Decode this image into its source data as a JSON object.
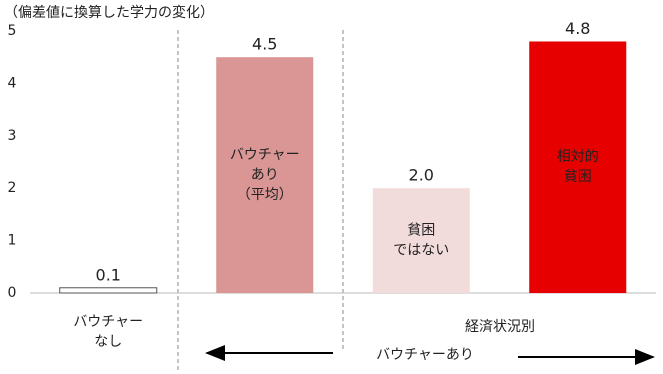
{
  "chart_data": {
    "type": "bar",
    "title": "（偏差値に換算した学力の変化）",
    "categories": [
      [
        "バウチャー",
        "なし"
      ],
      [
        "バウチャー",
        "あり",
        "（平均）"
      ],
      [
        "貧困",
        "ではない"
      ],
      [
        "相対的",
        "貧困"
      ]
    ],
    "values": [
      0.1,
      4.5,
      2.0,
      4.8
    ],
    "value_labels": [
      "0.1",
      "4.5",
      "2.0",
      "4.8"
    ],
    "colors": [
      "#ffffff",
      "#d99694",
      "#f2dcdb",
      "#e60000"
    ],
    "ylim": [
      0,
      5
    ],
    "yticks": [
      0,
      1,
      2,
      3,
      4,
      5
    ],
    "grid": false,
    "annotations": [
      "経済状況別",
      "バウチャーあり"
    ]
  }
}
